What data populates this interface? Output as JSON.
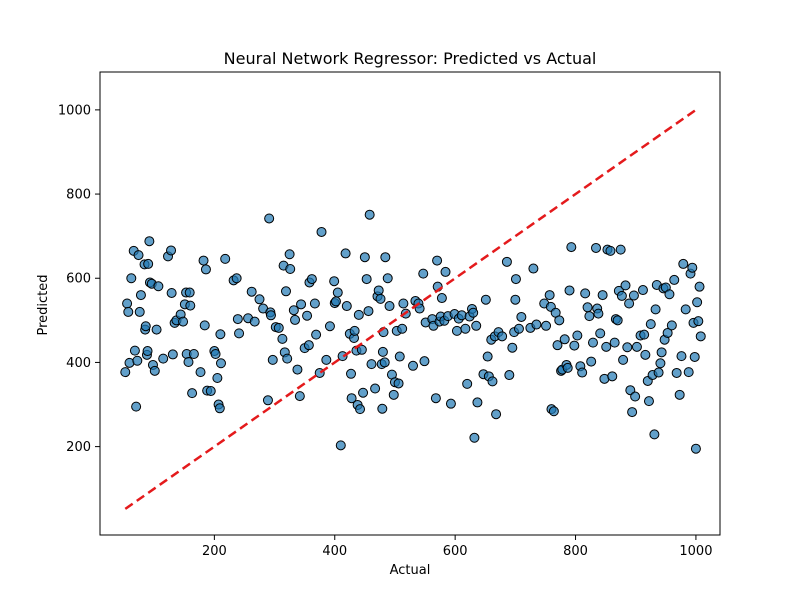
{
  "chart_data": {
    "type": "scatter",
    "title": "Neural Network Regressor: Predicted vs Actual",
    "xlabel": "Actual",
    "ylabel": "Predicted",
    "xlim": [
      10,
      1040
    ],
    "ylim": [
      -10,
      1090
    ],
    "xticks": [
      200,
      400,
      600,
      800,
      1000
    ],
    "yticks": [
      200,
      400,
      600,
      800,
      1000
    ],
    "grid": false,
    "colors": {
      "points": "#1f77b4",
      "point_edge": "#000000",
      "reference_line": "#e41a1c"
    },
    "reference_line": {
      "style": "dashed",
      "x": [
        52,
        1000
      ],
      "y": [
        52,
        1000
      ]
    },
    "points": [
      [
        52,
        377
      ],
      [
        55,
        540
      ],
      [
        57,
        520
      ],
      [
        59,
        399
      ],
      [
        62,
        600
      ],
      [
        66,
        665
      ],
      [
        68,
        428
      ],
      [
        70,
        295
      ],
      [
        72,
        404
      ],
      [
        74,
        655
      ],
      [
        76,
        520
      ],
      [
        78,
        560
      ],
      [
        84,
        633
      ],
      [
        85,
        478
      ],
      [
        86,
        486
      ],
      [
        88,
        418
      ],
      [
        89,
        427
      ],
      [
        90,
        634
      ],
      [
        92,
        688
      ],
      [
        93,
        590
      ],
      [
        96,
        587
      ],
      [
        98,
        394
      ],
      [
        101,
        380
      ],
      [
        104,
        478
      ],
      [
        107,
        581
      ],
      [
        115,
        409
      ],
      [
        123,
        652
      ],
      [
        128,
        666
      ],
      [
        129,
        565
      ],
      [
        131,
        419
      ],
      [
        134,
        494
      ],
      [
        137,
        500
      ],
      [
        144,
        514
      ],
      [
        148,
        497
      ],
      [
        151,
        538
      ],
      [
        153,
        566
      ],
      [
        154,
        420
      ],
      [
        157,
        401
      ],
      [
        159,
        566
      ],
      [
        160,
        535
      ],
      [
        163,
        327
      ],
      [
        166,
        420
      ],
      [
        177,
        377
      ],
      [
        182,
        642
      ],
      [
        184,
        488
      ],
      [
        186,
        621
      ],
      [
        188,
        333
      ],
      [
        194,
        332
      ],
      [
        200,
        427
      ],
      [
        202,
        420
      ],
      [
        205,
        363
      ],
      [
        207,
        300
      ],
      [
        209,
        291
      ],
      [
        210,
        467
      ],
      [
        211,
        398
      ],
      [
        218,
        646
      ],
      [
        232,
        595
      ],
      [
        237,
        600
      ],
      [
        239,
        503
      ],
      [
        241,
        469
      ],
      [
        256,
        505
      ],
      [
        262,
        568
      ],
      [
        267,
        497
      ],
      [
        275,
        550
      ],
      [
        281,
        528
      ],
      [
        289,
        310
      ],
      [
        291,
        742
      ],
      [
        293,
        519
      ],
      [
        294,
        512
      ],
      [
        297,
        406
      ],
      [
        302,
        484
      ],
      [
        307,
        482
      ],
      [
        313,
        456
      ],
      [
        315,
        630
      ],
      [
        317,
        424
      ],
      [
        319,
        569
      ],
      [
        321,
        409
      ],
      [
        325,
        657
      ],
      [
        326,
        622
      ],
      [
        332,
        524
      ],
      [
        334,
        501
      ],
      [
        338,
        383
      ],
      [
        342,
        320
      ],
      [
        344,
        538
      ],
      [
        350,
        434
      ],
      [
        354,
        511
      ],
      [
        357,
        441
      ],
      [
        358,
        590
      ],
      [
        362,
        598
      ],
      [
        367,
        540
      ],
      [
        369,
        466
      ],
      [
        375,
        375
      ],
      [
        378,
        710
      ],
      [
        386,
        406
      ],
      [
        392,
        486
      ],
      [
        399,
        593
      ],
      [
        400,
        541
      ],
      [
        402,
        545
      ],
      [
        405,
        566
      ],
      [
        410,
        203
      ],
      [
        413,
        415
      ],
      [
        418,
        659
      ],
      [
        420,
        534
      ],
      [
        425,
        468
      ],
      [
        427,
        373
      ],
      [
        428,
        315
      ],
      [
        432,
        458
      ],
      [
        433,
        475
      ],
      [
        436,
        428
      ],
      [
        438,
        299
      ],
      [
        440,
        513
      ],
      [
        442,
        289
      ],
      [
        445,
        430
      ],
      [
        447,
        328
      ],
      [
        450,
        650
      ],
      [
        453,
        598
      ],
      [
        456,
        522
      ],
      [
        458,
        751
      ],
      [
        461,
        396
      ],
      [
        467,
        338
      ],
      [
        471,
        557
      ],
      [
        473,
        571
      ],
      [
        476,
        551
      ],
      [
        478,
        396
      ],
      [
        479,
        290
      ],
      [
        480,
        425
      ],
      [
        481,
        472
      ],
      [
        483,
        400
      ],
      [
        484,
        650
      ],
      [
        488,
        600
      ],
      [
        491,
        534
      ],
      [
        495,
        371
      ],
      [
        498,
        323
      ],
      [
        500,
        353
      ],
      [
        503,
        475
      ],
      [
        506,
        350
      ],
      [
        508,
        414
      ],
      [
        512,
        480
      ],
      [
        514,
        540
      ],
      [
        518,
        516
      ],
      [
        530,
        392
      ],
      [
        534,
        546
      ],
      [
        539,
        540
      ],
      [
        541,
        528
      ],
      [
        547,
        611
      ],
      [
        549,
        403
      ],
      [
        551,
        495
      ],
      [
        562,
        503
      ],
      [
        564,
        487
      ],
      [
        568,
        315
      ],
      [
        570,
        642
      ],
      [
        571,
        580
      ],
      [
        574,
        497
      ],
      [
        576,
        509
      ],
      [
        578,
        553
      ],
      [
        582,
        499
      ],
      [
        584,
        615
      ],
      [
        588,
        510
      ],
      [
        593,
        302
      ],
      [
        599,
        515
      ],
      [
        603,
        475
      ],
      [
        606,
        504
      ],
      [
        611,
        512
      ],
      [
        617,
        480
      ],
      [
        620,
        349
      ],
      [
        624,
        509
      ],
      [
        628,
        527
      ],
      [
        630,
        518
      ],
      [
        632,
        221
      ],
      [
        635,
        487
      ],
      [
        637,
        305
      ],
      [
        647,
        372
      ],
      [
        651,
        549
      ],
      [
        654,
        414
      ],
      [
        656,
        367
      ],
      [
        660,
        454
      ],
      [
        662,
        355
      ],
      [
        666,
        462
      ],
      [
        668,
        277
      ],
      [
        672,
        472
      ],
      [
        678,
        462
      ],
      [
        686,
        639
      ],
      [
        690,
        370
      ],
      [
        695,
        435
      ],
      [
        698,
        472
      ],
      [
        700,
        549
      ],
      [
        701,
        598
      ],
      [
        706,
        480
      ],
      [
        710,
        508
      ],
      [
        725,
        482
      ],
      [
        730,
        623
      ],
      [
        735,
        490
      ],
      [
        748,
        540
      ],
      [
        751,
        487
      ],
      [
        757,
        560
      ],
      [
        759,
        532
      ],
      [
        760,
        289
      ],
      [
        764,
        284
      ],
      [
        767,
        518
      ],
      [
        770,
        441
      ],
      [
        773,
        500
      ],
      [
        776,
        380
      ],
      [
        778,
        383
      ],
      [
        782,
        455
      ],
      [
        785,
        394
      ],
      [
        787,
        387
      ],
      [
        790,
        571
      ],
      [
        793,
        674
      ],
      [
        798,
        440
      ],
      [
        803,
        464
      ],
      [
        808,
        391
      ],
      [
        811,
        376
      ],
      [
        816,
        564
      ],
      [
        820,
        531
      ],
      [
        823,
        510
      ],
      [
        826,
        402
      ],
      [
        829,
        447
      ],
      [
        834,
        672
      ],
      [
        836,
        528
      ],
      [
        838,
        516
      ],
      [
        841,
        469
      ],
      [
        845,
        560
      ],
      [
        848,
        361
      ],
      [
        851,
        437
      ],
      [
        853,
        668
      ],
      [
        858,
        665
      ],
      [
        861,
        367
      ],
      [
        865,
        447
      ],
      [
        867,
        503
      ],
      [
        870,
        500
      ],
      [
        872,
        570
      ],
      [
        875,
        668
      ],
      [
        877,
        558
      ],
      [
        879,
        406
      ],
      [
        883,
        583
      ],
      [
        886,
        436
      ],
      [
        889,
        540
      ],
      [
        891,
        334
      ],
      [
        894,
        282
      ],
      [
        897,
        559
      ],
      [
        899,
        319
      ],
      [
        902,
        437
      ],
      [
        908,
        464
      ],
      [
        912,
        572
      ],
      [
        914,
        466
      ],
      [
        916,
        418
      ],
      [
        920,
        356
      ],
      [
        922,
        308
      ],
      [
        925,
        491
      ],
      [
        928,
        370
      ],
      [
        931,
        229
      ],
      [
        933,
        526
      ],
      [
        935,
        584
      ],
      [
        938,
        376
      ],
      [
        941,
        398
      ],
      [
        943,
        424
      ],
      [
        946,
        576
      ],
      [
        948,
        454
      ],
      [
        950,
        578
      ],
      [
        953,
        470
      ],
      [
        956,
        562
      ],
      [
        960,
        488
      ],
      [
        964,
        596
      ],
      [
        968,
        375
      ],
      [
        973,
        323
      ],
      [
        976,
        415
      ],
      [
        979,
        634
      ],
      [
        983,
        526
      ],
      [
        988,
        377
      ],
      [
        991,
        611
      ],
      [
        994,
        625
      ],
      [
        996,
        494
      ],
      [
        998,
        413
      ],
      [
        1000,
        195
      ],
      [
        1002,
        543
      ],
      [
        1004,
        498
      ],
      [
        1006,
        580
      ],
      [
        1008,
        462
      ]
    ]
  }
}
